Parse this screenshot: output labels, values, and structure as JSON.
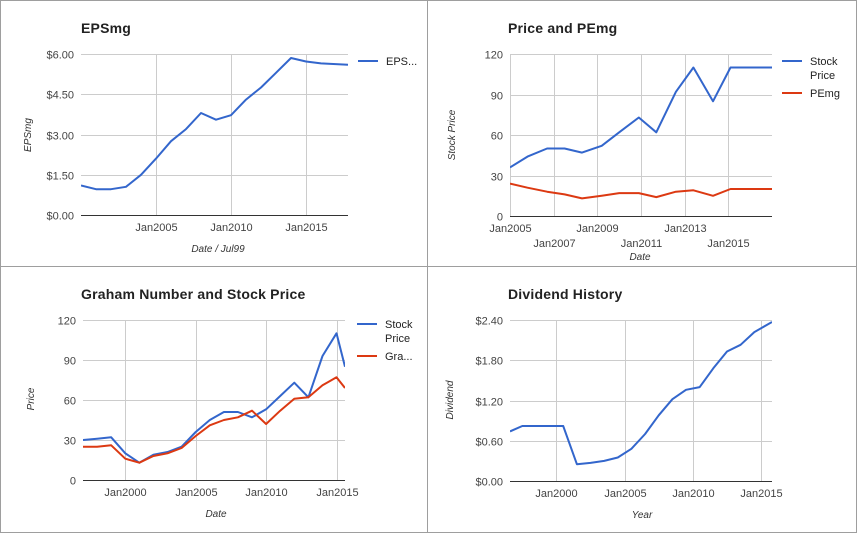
{
  "chart_data": [
    {
      "type": "line",
      "title": "EPSmg",
      "xlabel": "Date / Jul99",
      "ylabel": "EPSmg",
      "x_ticks": [
        {
          "label": "Jan2005",
          "x": 2005.0
        },
        {
          "label": "Jan2010",
          "x": 2010.0
        },
        {
          "label": "Jan2015",
          "x": 2015.0
        }
      ],
      "xlim": [
        2000.0,
        2017.8
      ],
      "y_ticks": [
        "$0.00",
        "$1.50",
        "$3.00",
        "$4.50",
        "$6.00"
      ],
      "ylim": [
        0,
        6
      ],
      "grid": true,
      "legend_position": "right",
      "series": [
        {
          "name": "EPS...",
          "color": "#3366cc",
          "x": [
            2000.0,
            2001.0,
            2002.0,
            2003.0,
            2004.0,
            2005.0,
            2006.0,
            2007.0,
            2008.0,
            2009.0,
            2010.0,
            2011.0,
            2012.0,
            2013.0,
            2014.0,
            2015.0,
            2016.0,
            2017.8
          ],
          "values": [
            1.1,
            0.96,
            0.96,
            1.05,
            1.5,
            2.1,
            2.75,
            3.2,
            3.8,
            3.55,
            3.72,
            4.3,
            4.75,
            5.3,
            5.85,
            5.72,
            5.65,
            5.6
          ]
        }
      ]
    },
    {
      "type": "line",
      "title": "Price and PEmg",
      "xlabel": "Date",
      "ylabel": "Stock Price",
      "x_ticks": [
        {
          "label": "Jan2005",
          "x": 2005.0
        },
        {
          "label": "Jan2007",
          "x": 2007.0
        },
        {
          "label": "Jan2009",
          "x": 2009.0
        },
        {
          "label": "Jan2011",
          "x": 2011.0
        },
        {
          "label": "Jan2013",
          "x": 2013.0
        },
        {
          "label": "Jan2015",
          "x": 2015.0
        }
      ],
      "xlim": [
        2005.0,
        2017.0
      ],
      "y_ticks": [
        "0",
        "30",
        "60",
        "90",
        "120"
      ],
      "ylim": [
        0,
        120
      ],
      "grid": true,
      "legend_position": "right",
      "series": [
        {
          "name": "Stock Price",
          "color": "#3366cc",
          "x": [
            2005.0,
            2005.8,
            2006.7,
            2007.5,
            2008.3,
            2009.2,
            2010.0,
            2010.9,
            2011.7,
            2012.6,
            2013.4,
            2014.3,
            2015.1,
            2016.0,
            2017.0
          ],
          "values": [
            36,
            44,
            50,
            50,
            47,
            52,
            62,
            73,
            62,
            92,
            110,
            85,
            110,
            110,
            110
          ]
        },
        {
          "name": "PEmg",
          "color": "#dc3912",
          "x": [
            2005.0,
            2005.8,
            2006.7,
            2007.5,
            2008.3,
            2009.2,
            2010.0,
            2010.9,
            2011.7,
            2012.6,
            2013.4,
            2014.3,
            2015.1,
            2016.0,
            2017.0
          ],
          "values": [
            24,
            21,
            18,
            16,
            13,
            15,
            17,
            17,
            14,
            18,
            19,
            15,
            20,
            20,
            20
          ]
        }
      ]
    },
    {
      "type": "line",
      "title": "Graham Number and Stock Price",
      "xlabel": "Date",
      "ylabel": "Price",
      "x_ticks": [
        {
          "label": "Jan2000",
          "x": 2000.0
        },
        {
          "label": "Jan2005",
          "x": 2005.0
        },
        {
          "label": "Jan2010",
          "x": 2010.0
        },
        {
          "label": "Jan2015",
          "x": 2015.0
        }
      ],
      "xlim": [
        1997.0,
        2015.6
      ],
      "y_ticks": [
        "0",
        "30",
        "60",
        "90",
        "120"
      ],
      "ylim": [
        0,
        120
      ],
      "grid": true,
      "legend_position": "right",
      "series": [
        {
          "name": "Stock Price",
          "color": "#3366cc",
          "x": [
            1997.0,
            1998.0,
            1999.0,
            2000.0,
            2001.0,
            2002.0,
            2003.0,
            2004.0,
            2005.0,
            2006.0,
            2007.0,
            2008.0,
            2009.0,
            2010.0,
            2011.0,
            2012.0,
            2013.0,
            2014.0,
            2015.0,
            2015.6
          ],
          "values": [
            30,
            31,
            32,
            20,
            13,
            19,
            21,
            25,
            36,
            45,
            51,
            51,
            47,
            53,
            63,
            73,
            62,
            93,
            110,
            85
          ]
        },
        {
          "name": "Gra...",
          "color": "#dc3912",
          "x": [
            1997.0,
            1998.0,
            1999.0,
            2000.0,
            2001.0,
            2002.0,
            2003.0,
            2004.0,
            2005.0,
            2006.0,
            2007.0,
            2008.0,
            2009.0,
            2010.0,
            2011.0,
            2012.0,
            2013.0,
            2014.0,
            2015.0,
            2015.6
          ],
          "values": [
            25,
            25,
            26,
            16,
            13,
            18,
            20,
            24,
            33,
            41,
            45,
            47,
            52,
            42,
            52,
            61,
            62,
            71,
            77,
            69
          ]
        }
      ]
    },
    {
      "type": "line",
      "title": "Dividend History",
      "xlabel": "Year",
      "ylabel": "Dividend",
      "x_ticks": [
        {
          "label": "Jan2000",
          "x": 2000.0
        },
        {
          "label": "Jan2005",
          "x": 2005.0
        },
        {
          "label": "Jan2010",
          "x": 2010.0
        },
        {
          "label": "Jan2015",
          "x": 2015.0
        }
      ],
      "xlim": [
        1996.6,
        2015.8
      ],
      "y_ticks": [
        "$0.00",
        "$0.60",
        "$1.20",
        "$1.80",
        "$2.40"
      ],
      "ylim": [
        0,
        2.4
      ],
      "grid": true,
      "legend_position": "none",
      "series": [
        {
          "color": "#3366cc",
          "x": [
            1996.6,
            1997.5,
            1998.5,
            1999.5,
            2000.5,
            2001.5,
            2002.5,
            2003.5,
            2004.5,
            2005.5,
            2006.5,
            2007.5,
            2008.5,
            2009.5,
            2010.5,
            2011.5,
            2012.5,
            2013.5,
            2014.5,
            2015.8
          ],
          "values": [
            0.74,
            0.82,
            0.82,
            0.82,
            0.82,
            0.25,
            0.27,
            0.3,
            0.35,
            0.48,
            0.7,
            0.98,
            1.22,
            1.36,
            1.4,
            1.68,
            1.93,
            2.03,
            2.22,
            2.37
          ]
        }
      ]
    }
  ]
}
